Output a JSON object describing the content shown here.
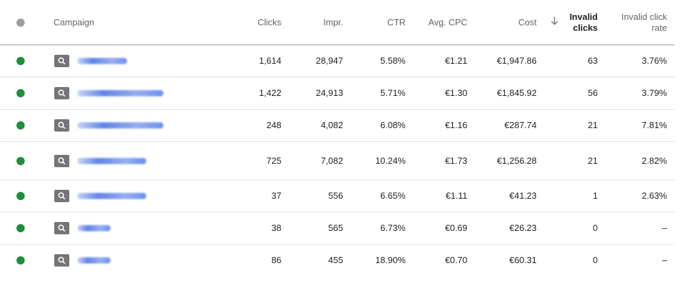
{
  "header": {
    "campaign": "Campaign",
    "clicks": "Clicks",
    "impr": "Impr.",
    "ctr": "CTR",
    "avg_cpc": "Avg. CPC",
    "cost": "Cost",
    "invalid_clicks_1": "Invalid",
    "invalid_clicks_2": "clicks",
    "invalid_rate_1": "Invalid click",
    "invalid_rate_2": "rate"
  },
  "rows": [
    {
      "clicks": "1,614",
      "impr": "28,947",
      "ctr": "5.58%",
      "avg_cpc": "€1.21",
      "cost": "€1,947.86",
      "invalid_clicks": "63",
      "invalid_rate": "3.76%"
    },
    {
      "clicks": "1,422",
      "impr": "24,913",
      "ctr": "5.71%",
      "avg_cpc": "€1.30",
      "cost": "€1,845.92",
      "invalid_clicks": "56",
      "invalid_rate": "3.79%"
    },
    {
      "clicks": "248",
      "impr": "4,082",
      "ctr": "6.08%",
      "avg_cpc": "€1.16",
      "cost": "€287.74",
      "invalid_clicks": "21",
      "invalid_rate": "7.81%"
    },
    {
      "clicks": "725",
      "impr": "7,082",
      "ctr": "10.24%",
      "avg_cpc": "€1.73",
      "cost": "€1,256.28",
      "invalid_clicks": "21",
      "invalid_rate": "2.82%"
    },
    {
      "clicks": "37",
      "impr": "556",
      "ctr": "6.65%",
      "avg_cpc": "€1.11",
      "cost": "€41.23",
      "invalid_clicks": "1",
      "invalid_rate": "2.63%"
    },
    {
      "clicks": "38",
      "impr": "565",
      "ctr": "6.73%",
      "avg_cpc": "€0.69",
      "cost": "€26.23",
      "invalid_clicks": "0",
      "invalid_rate": "–"
    },
    {
      "clicks": "86",
      "impr": "455",
      "ctr": "18.90%",
      "avg_cpc": "€0.70",
      "cost": "€60.31",
      "invalid_clicks": "0",
      "invalid_rate": "–"
    }
  ],
  "icons": {
    "status": "status-dot-icon",
    "campaign_type": "search-icon",
    "sort": "arrow-down-icon"
  },
  "colors": {
    "enabled": "#1e8e3e",
    "header_dot": "#9e9e9e",
    "badge": "#757575"
  }
}
